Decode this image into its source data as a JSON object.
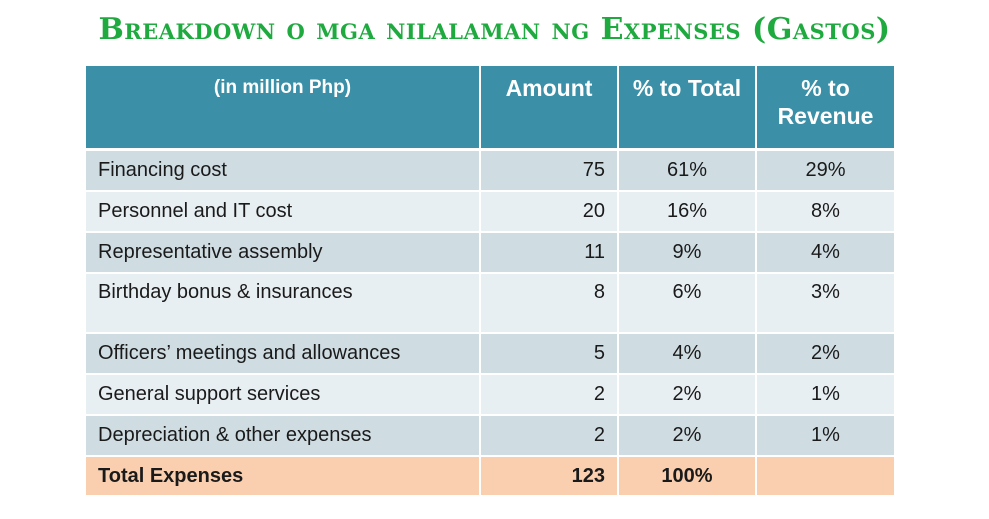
{
  "title": "Breakdown o mga nilalaman ng Expenses (Gastos)",
  "colors": {
    "title": "#1faa3f",
    "header_bg": "#3b8fa6",
    "row_dark": "#cfdde3",
    "row_light": "#e8eff2",
    "total_bg": "#f9cfb0"
  },
  "table": {
    "headers": {
      "label": "(in million Php)",
      "amount": "Amount",
      "pct_total": "% to Total",
      "pct_revenue": "% to Revenue"
    },
    "rows": [
      {
        "label": "Financing cost",
        "amount": "75",
        "pct_total": "61%",
        "pct_revenue": "29%"
      },
      {
        "label": "Personnel and IT cost",
        "amount": "20",
        "pct_total": "16%",
        "pct_revenue": "8%"
      },
      {
        "label": "Representative assembly",
        "amount": "11",
        "pct_total": "9%",
        "pct_revenue": "4%"
      },
      {
        "label": "Birthday bonus & insurances",
        "amount": "8",
        "pct_total": "6%",
        "pct_revenue": "3%"
      },
      {
        "label": "Officers’ meetings and allowances",
        "amount": "5",
        "pct_total": "4%",
        "pct_revenue": "2%"
      },
      {
        "label": "General support services",
        "amount": "2",
        "pct_total": "2%",
        "pct_revenue": "1%"
      },
      {
        "label": "Depreciation & other expenses",
        "amount": "2",
        "pct_total": "2%",
        "pct_revenue": "1%"
      }
    ],
    "total": {
      "label": "Total Expenses",
      "amount": "123",
      "pct_total": "100%",
      "pct_revenue": ""
    }
  }
}
